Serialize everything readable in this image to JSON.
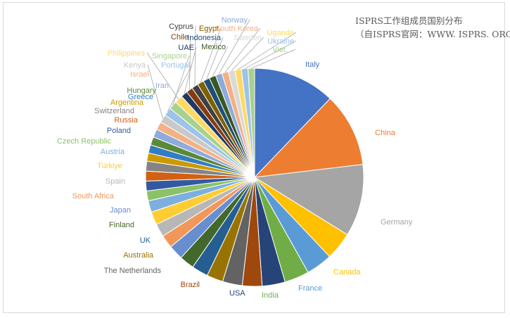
{
  "chart_data": {
    "type": "pie",
    "title": "ISPRS工作组成员国别分布",
    "subtitle": "（自ISPRS官网：WWW. ISPRS. ORG）",
    "legend": "none",
    "slices": [
      {
        "label": "Italy",
        "value": 50,
        "color": "#4472c4"
      },
      {
        "label": "China",
        "value": 45,
        "color": "#ed7d31"
      },
      {
        "label": "Germany",
        "value": 44,
        "color": "#a5a5a5"
      },
      {
        "label": "Canada",
        "value": 17,
        "color": "#ffc000"
      },
      {
        "label": "France",
        "value": 16,
        "color": "#5b9bd5"
      },
      {
        "label": "India",
        "value": 15,
        "color": "#70ad47"
      },
      {
        "label": "USA",
        "value": 14,
        "color": "#264478"
      },
      {
        "label": "Brazil",
        "value": 12,
        "color": "#9e480e"
      },
      {
        "label": "The Netherlands",
        "value": 12,
        "color": "#636363"
      },
      {
        "label": "Australia",
        "value": 10,
        "color": "#997300"
      },
      {
        "label": "UK",
        "value": 10,
        "color": "#255e91"
      },
      {
        "label": "Finland",
        "value": 9,
        "color": "#43682b"
      },
      {
        "label": "Japan",
        "value": 9,
        "color": "#698ed0"
      },
      {
        "label": "South Africa",
        "value": 8,
        "color": "#f1975a"
      },
      {
        "label": "Spain",
        "value": 8,
        "color": "#b7b7b7"
      },
      {
        "label": "Türkiye",
        "value": 8,
        "color": "#ffcd33"
      },
      {
        "label": "Austria",
        "value": 7,
        "color": "#7cafdd"
      },
      {
        "label": "Czech Republic",
        "value": 6,
        "color": "#8cc168"
      },
      {
        "label": "Poland",
        "value": 6,
        "color": "#335aa1"
      },
      {
        "label": "Russia",
        "value": 6,
        "color": "#d26012"
      },
      {
        "label": "Switzerland",
        "value": 6,
        "color": "#848484"
      },
      {
        "label": "Argentina",
        "value": 5,
        "color": "#cc9a00"
      },
      {
        "label": "Greece",
        "value": 5,
        "color": "#327dc2"
      },
      {
        "label": "Hungary",
        "value": 5,
        "color": "#5a8a39"
      },
      {
        "label": "Iran",
        "value": 5,
        "color": "#8faadc"
      },
      {
        "label": "Israel",
        "value": 5,
        "color": "#f4b183"
      },
      {
        "label": "Kenya",
        "value": 5,
        "color": "#c9c9c9"
      },
      {
        "label": "Portugal",
        "value": 5,
        "color": "#9dc3e6"
      },
      {
        "label": "Singapore",
        "value": 5,
        "color": "#a9d18e"
      },
      {
        "label": "Philippines",
        "value": 5,
        "color": "#ffd966"
      },
      {
        "label": "UAE",
        "value": 4,
        "color": "#1f3864"
      },
      {
        "label": "Chile",
        "value": 4,
        "color": "#843c0c"
      },
      {
        "label": "Cyprus",
        "value": 4,
        "color": "#404040"
      },
      {
        "label": "Egypt",
        "value": 4,
        "color": "#7f6000"
      },
      {
        "label": "Indonesia",
        "value": 4,
        "color": "#1f4e79"
      },
      {
        "label": "Mexico",
        "value": 4,
        "color": "#385723"
      },
      {
        "label": "Norway",
        "value": 4,
        "color": "#8eaadb"
      },
      {
        "label": "South Korea",
        "value": 4,
        "color": "#f4b084"
      },
      {
        "label": "Sweden",
        "value": 4,
        "color": "#d9d9d9"
      },
      {
        "label": "Uganda",
        "value": 4,
        "color": "#ffd966"
      },
      {
        "label": "Ukraine",
        "value": 4,
        "color": "#9dc3e6"
      },
      {
        "label": "Viet…",
        "value": 4,
        "color": "#a9d18e"
      }
    ]
  }
}
